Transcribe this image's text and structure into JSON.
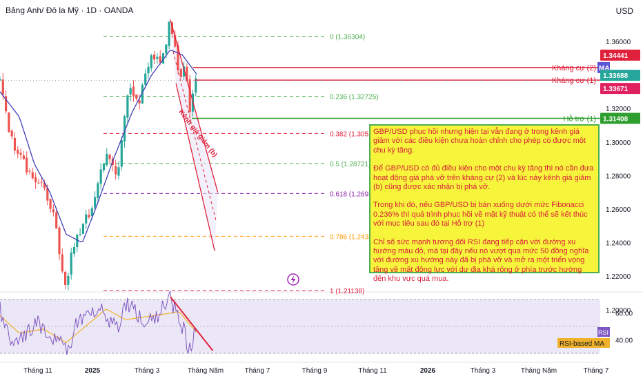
{
  "header": {
    "title": "Bảng Anh/ Đô la Mỹ · 1D · OANDA",
    "currency": "USD"
  },
  "colors": {
    "up": "#26a69a",
    "down": "#ef5350",
    "ma": "#3f3fb6",
    "resistance": "#e0213b",
    "support": "#2e9e2e",
    "fib": "#4caf50",
    "channel": "#e0213b",
    "rsi_line": "#7e57c2",
    "rsi_ma": "#f0b22a",
    "note_bg": "#f6f43b"
  },
  "chart_data": [
    {
      "type": "candlestick",
      "title": "Bảng Anh/ Đô la Mỹ · 1D · OANDA",
      "price_axis": {
        "ticks": [
          "1.36000",
          "1.34000",
          "1.32000",
          "1.30000",
          "1.28000",
          "1.26000",
          "1.24000",
          "1.22000",
          "1.20000"
        ]
      },
      "time_axis": {
        "ticks": [
          "Tháng 11",
          "2025",
          "Tháng 3",
          "Tháng Năm",
          "Tháng 7",
          "Tháng 9",
          "Tháng 11",
          "2026",
          "Tháng 3",
          "Tháng Năm",
          "Tháng 7"
        ]
      },
      "path_anchors": [
        {
          "x": "2024-10-01",
          "y": 1.336
        },
        {
          "x": "2024-10-20",
          "y": 1.3
        },
        {
          "x": "2024-11-10",
          "y": 1.285
        },
        {
          "x": "2024-11-25",
          "y": 1.275
        },
        {
          "x": "2024-12-10",
          "y": 1.272
        },
        {
          "x": "2024-12-28",
          "y": 1.255
        },
        {
          "x": "2025-01-13",
          "y": 1.212
        },
        {
          "x": "2025-01-28",
          "y": 1.24
        },
        {
          "x": "2025-02-12",
          "y": 1.25
        },
        {
          "x": "2025-03-01",
          "y": 1.265
        },
        {
          "x": "2025-03-20",
          "y": 1.295
        },
        {
          "x": "2025-04-07",
          "y": 1.28
        },
        {
          "x": "2025-04-25",
          "y": 1.335
        },
        {
          "x": "2025-05-12",
          "y": 1.325
        },
        {
          "x": "2025-06-01",
          "y": 1.35
        },
        {
          "x": "2025-06-18",
          "y": 1.35
        },
        {
          "x": "2025-07-01",
          "y": 1.372
        },
        {
          "x": "2025-07-15",
          "y": 1.34
        },
        {
          "x": "2025-07-25",
          "y": 1.346
        },
        {
          "x": "2025-08-01",
          "y": 1.32
        },
        {
          "x": "2025-08-08",
          "y": 1.336
        },
        {
          "x": "2025-08-13",
          "y": 1.3367
        }
      ],
      "moving_average": [
        {
          "x": "2024-10-01",
          "y": 1.33
        },
        {
          "x": "2024-11-01",
          "y": 1.315
        },
        {
          "x": "2024-11-25",
          "y": 1.287
        },
        {
          "x": "2024-12-20",
          "y": 1.27
        },
        {
          "x": "2025-01-15",
          "y": 1.245
        },
        {
          "x": "2025-02-10",
          "y": 1.24
        },
        {
          "x": "2025-03-05",
          "y": 1.262
        },
        {
          "x": "2025-04-01",
          "y": 1.29
        },
        {
          "x": "2025-05-01",
          "y": 1.318
        },
        {
          "x": "2025-06-01",
          "y": 1.34
        },
        {
          "x": "2025-07-01",
          "y": 1.355
        },
        {
          "x": "2025-07-20",
          "y": 1.352
        },
        {
          "x": "2025-08-13",
          "y": 1.34
        }
      ],
      "fibonacci": [
        {
          "label": "0 (1.36304)",
          "value": 1.36304
        },
        {
          "label": "0.236 (1.32725)",
          "value": 1.32725
        },
        {
          "label": "0.382 (1.30511)",
          "value": 1.30511
        },
        {
          "label": "0.5 (1.28721)",
          "value": 1.28721
        },
        {
          "label": "0.618 (1.2693",
          "value": 1.2693
        },
        {
          "label": "0.786 (1.2438",
          "value": 1.2438
        },
        {
          "label": "1 (1.21138)",
          "value": 1.21138
        }
      ],
      "horizontal_levels": [
        {
          "label": "Kháng cự (2)",
          "value": 1.3444,
          "badge": "1.34441",
          "role": "resistance"
        },
        {
          "label": "Kháng cự (1)",
          "value": 1.3369,
          "badge": "1.33688",
          "role": "resistance"
        },
        {
          "label": "Hỗ trợ (1)",
          "value": 1.3141,
          "badge": "1.31408",
          "role": "support"
        }
      ],
      "ma_badge": {
        "label": "MA",
        "value": "1.33671"
      },
      "channel": {
        "label": "Kênh giá giảm (b)",
        "upper": [
          {
            "x": "2025-07-01",
            "y": 1.373
          },
          {
            "x": "2025-09-15",
            "y": 1.27
          }
        ],
        "lower": [
          {
            "x": "2025-07-10",
            "y": 1.335
          },
          {
            "x": "2025-09-10",
            "y": 1.235
          }
        ]
      },
      "note": [
        "GBP/USD phục hồi nhưng hiện tại vẫn đang ở trong kênh giá giảm với các điều kiện chưa hoàn chỉnh cho phép có được một chu kỳ tăng.",
        "Để GBP/USD có đủ điều kiện cho một chu kỳ tăng thì nó cần đưa hoạt động giá phá vỡ trên kháng cự (2) và lúc này kênh giá giảm (b) cũng được xác nhận bị phá vỡ.",
        "Trong khi đó, nếu GBP/USD bị bán xuống dưới mức Fibonacci 0.236% thì quá trình phục hồi về mặt kỹ thuật có thể sẽ kết thúc với mục tiêu sau đó tại Hỗ trợ (1)",
        "Chỉ số sức mạnh tương đối RSI đang tiếp cận với đường xu hướng màu đỏ, mà tại đây nếu nó vượt qua mức 50 đồng nghĩa với đường xu hướng này đã bị phá vỡ và mở ra một triển vọng tăng về mặt động lực với dư địa khá rộng ở phía trước hướng đến khu vực quá mua."
      ]
    },
    {
      "type": "line",
      "title": "RSI",
      "y_ticks": [
        "60.00",
        "40.00"
      ],
      "band": [
        30,
        70
      ],
      "legend": [
        "RSI",
        "RSI-based MA"
      ],
      "rsi_anchors": [
        {
          "x": "2024-10-01",
          "y": 62
        },
        {
          "x": "2024-10-20",
          "y": 40
        },
        {
          "x": "2024-11-10",
          "y": 45
        },
        {
          "x": "2024-11-30",
          "y": 52
        },
        {
          "x": "2024-12-15",
          "y": 45
        },
        {
          "x": "2025-01-01",
          "y": 40
        },
        {
          "x": "2025-01-13",
          "y": 30
        },
        {
          "x": "2025-02-05",
          "y": 55
        },
        {
          "x": "2025-03-05",
          "y": 65
        },
        {
          "x": "2025-04-05",
          "y": 48
        },
        {
          "x": "2025-04-25",
          "y": 68
        },
        {
          "x": "2025-05-20",
          "y": 52
        },
        {
          "x": "2025-06-15",
          "y": 60
        },
        {
          "x": "2025-07-01",
          "y": 70
        },
        {
          "x": "2025-07-20",
          "y": 50
        },
        {
          "x": "2025-08-01",
          "y": 33
        },
        {
          "x": "2025-08-13",
          "y": 52
        }
      ],
      "rsi_ma_anchors": [
        {
          "x": "2024-10-01",
          "y": 58
        },
        {
          "x": "2024-11-01",
          "y": 45
        },
        {
          "x": "2024-12-10",
          "y": 48
        },
        {
          "x": "2025-01-15",
          "y": 38
        },
        {
          "x": "2025-02-15",
          "y": 50
        },
        {
          "x": "2025-03-20",
          "y": 63
        },
        {
          "x": "2025-04-20",
          "y": 55
        },
        {
          "x": "2025-05-20",
          "y": 57
        },
        {
          "x": "2025-06-20",
          "y": 59
        },
        {
          "x": "2025-07-15",
          "y": 61
        },
        {
          "x": "2025-08-13",
          "y": 45
        }
      ],
      "trendline": [
        {
          "x": "2025-07-01",
          "y": 72
        },
        {
          "x": "2025-09-07",
          "y": 32
        }
      ]
    }
  ]
}
